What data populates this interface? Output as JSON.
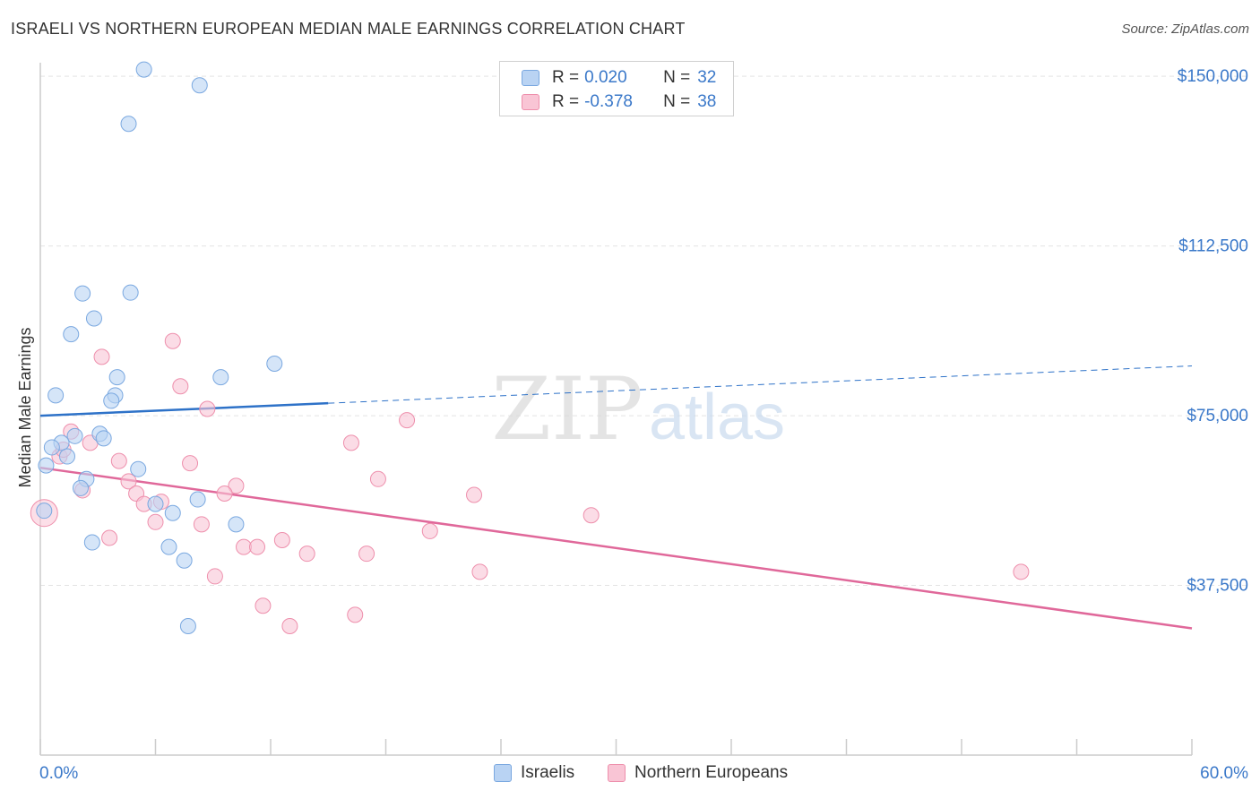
{
  "title": "ISRAELI VS NORTHERN EUROPEAN MEDIAN MALE EARNINGS CORRELATION CHART",
  "source": "Source: ZipAtlas.com",
  "watermark": {
    "zip": "ZIP",
    "atlas": "atlas"
  },
  "colors": {
    "israelis_fill": "#b9d3f3",
    "israelis_stroke": "#7aa8e0",
    "israelis_line": "#2e72c8",
    "northern_fill": "#f9c5d5",
    "northern_stroke": "#ee8fac",
    "northern_line": "#e0689a",
    "axis_label": "#3a78c9",
    "grid": "#e3e3e3"
  },
  "legend": {
    "rows": [
      {
        "r_label": "R =",
        "r_value": "0.020",
        "n_label": "N =",
        "n_value": "32",
        "swatch": "israelis"
      },
      {
        "r_label": "R =",
        "r_value": "-0.378",
        "n_label": "N =",
        "n_value": "38",
        "swatch": "northern"
      }
    ],
    "series": [
      {
        "name": "Israelis"
      },
      {
        "name": "Northern Europeans"
      }
    ]
  },
  "chart_data": {
    "type": "scatter",
    "title": "ISRAELI VS NORTHERN EUROPEAN MEDIAN MALE EARNINGS CORRELATION CHART",
    "xlabel": "",
    "ylabel": "Median Male Earnings",
    "xlim": [
      0,
      60
    ],
    "ylim": [
      0,
      153000
    ],
    "x_tick_labels": [
      "0.0%",
      "60.0%"
    ],
    "y_ticks": [
      37500,
      75000,
      112500,
      150000
    ],
    "y_tick_labels": [
      "$37,500",
      "$75,000",
      "$112,500",
      "$150,000"
    ],
    "grid": true,
    "legend_position": "top-center",
    "series": [
      {
        "name": "Israelis",
        "r": 0.02,
        "n": 32,
        "trend": {
          "x0": 0,
          "y0": 75000,
          "x1": 60,
          "y1": 86000,
          "solid_until_x": 15
        },
        "points": [
          {
            "x": 5.4,
            "y": 151500
          },
          {
            "x": 8.3,
            "y": 148000
          },
          {
            "x": 4.6,
            "y": 139500
          },
          {
            "x": 2.2,
            "y": 102000
          },
          {
            "x": 4.7,
            "y": 102200
          },
          {
            "x": 2.8,
            "y": 96500
          },
          {
            "x": 1.6,
            "y": 93000
          },
          {
            "x": 12.2,
            "y": 86500
          },
          {
            "x": 4.0,
            "y": 83500
          },
          {
            "x": 9.4,
            "y": 83500
          },
          {
            "x": 0.8,
            "y": 79500
          },
          {
            "x": 3.9,
            "y": 79500
          },
          {
            "x": 3.7,
            "y": 78300
          },
          {
            "x": 3.1,
            "y": 71000
          },
          {
            "x": 3.3,
            "y": 70000
          },
          {
            "x": 1.8,
            "y": 70500
          },
          {
            "x": 1.1,
            "y": 69000
          },
          {
            "x": 0.6,
            "y": 68000
          },
          {
            "x": 1.4,
            "y": 66000
          },
          {
            "x": 0.3,
            "y": 64000
          },
          {
            "x": 5.1,
            "y": 63200
          },
          {
            "x": 2.4,
            "y": 61000
          },
          {
            "x": 2.1,
            "y": 59000
          },
          {
            "x": 6.0,
            "y": 55500
          },
          {
            "x": 8.2,
            "y": 56500
          },
          {
            "x": 6.9,
            "y": 53500
          },
          {
            "x": 10.2,
            "y": 51000
          },
          {
            "x": 0.2,
            "y": 54000
          },
          {
            "x": 2.7,
            "y": 47000
          },
          {
            "x": 6.7,
            "y": 46000
          },
          {
            "x": 7.5,
            "y": 43000
          },
          {
            "x": 7.7,
            "y": 28500
          }
        ]
      },
      {
        "name": "Northern Europeans",
        "r": -0.378,
        "n": 38,
        "trend": {
          "x0": 0,
          "y0": 63500,
          "x1": 60,
          "y1": 28000
        },
        "points": [
          {
            "x": 0.2,
            "y": 53500
          },
          {
            "x": 3.2,
            "y": 88000
          },
          {
            "x": 6.9,
            "y": 91500
          },
          {
            "x": 7.3,
            "y": 81500
          },
          {
            "x": 8.7,
            "y": 76500
          },
          {
            "x": 19.1,
            "y": 74000
          },
          {
            "x": 1.6,
            "y": 71500
          },
          {
            "x": 2.6,
            "y": 69000
          },
          {
            "x": 16.2,
            "y": 69000
          },
          {
            "x": 1.0,
            "y": 66000
          },
          {
            "x": 1.2,
            "y": 67500
          },
          {
            "x": 4.1,
            "y": 65000
          },
          {
            "x": 7.8,
            "y": 64500
          },
          {
            "x": 17.6,
            "y": 61000
          },
          {
            "x": 4.6,
            "y": 60500
          },
          {
            "x": 2.2,
            "y": 58500
          },
          {
            "x": 10.2,
            "y": 59500
          },
          {
            "x": 5.0,
            "y": 57800
          },
          {
            "x": 9.6,
            "y": 57800
          },
          {
            "x": 22.6,
            "y": 57500
          },
          {
            "x": 6.3,
            "y": 56000
          },
          {
            "x": 5.4,
            "y": 55500
          },
          {
            "x": 28.7,
            "y": 53000
          },
          {
            "x": 6.0,
            "y": 51500
          },
          {
            "x": 8.4,
            "y": 51000
          },
          {
            "x": 20.3,
            "y": 49500
          },
          {
            "x": 3.6,
            "y": 48000
          },
          {
            "x": 12.6,
            "y": 47500
          },
          {
            "x": 10.6,
            "y": 46000
          },
          {
            "x": 11.3,
            "y": 46000
          },
          {
            "x": 13.9,
            "y": 44500
          },
          {
            "x": 17.0,
            "y": 44500
          },
          {
            "x": 22.9,
            "y": 40500
          },
          {
            "x": 51.1,
            "y": 40500
          },
          {
            "x": 9.1,
            "y": 39500
          },
          {
            "x": 11.6,
            "y": 33000
          },
          {
            "x": 16.4,
            "y": 31000
          },
          {
            "x": 13.0,
            "y": 28500
          }
        ]
      }
    ]
  }
}
